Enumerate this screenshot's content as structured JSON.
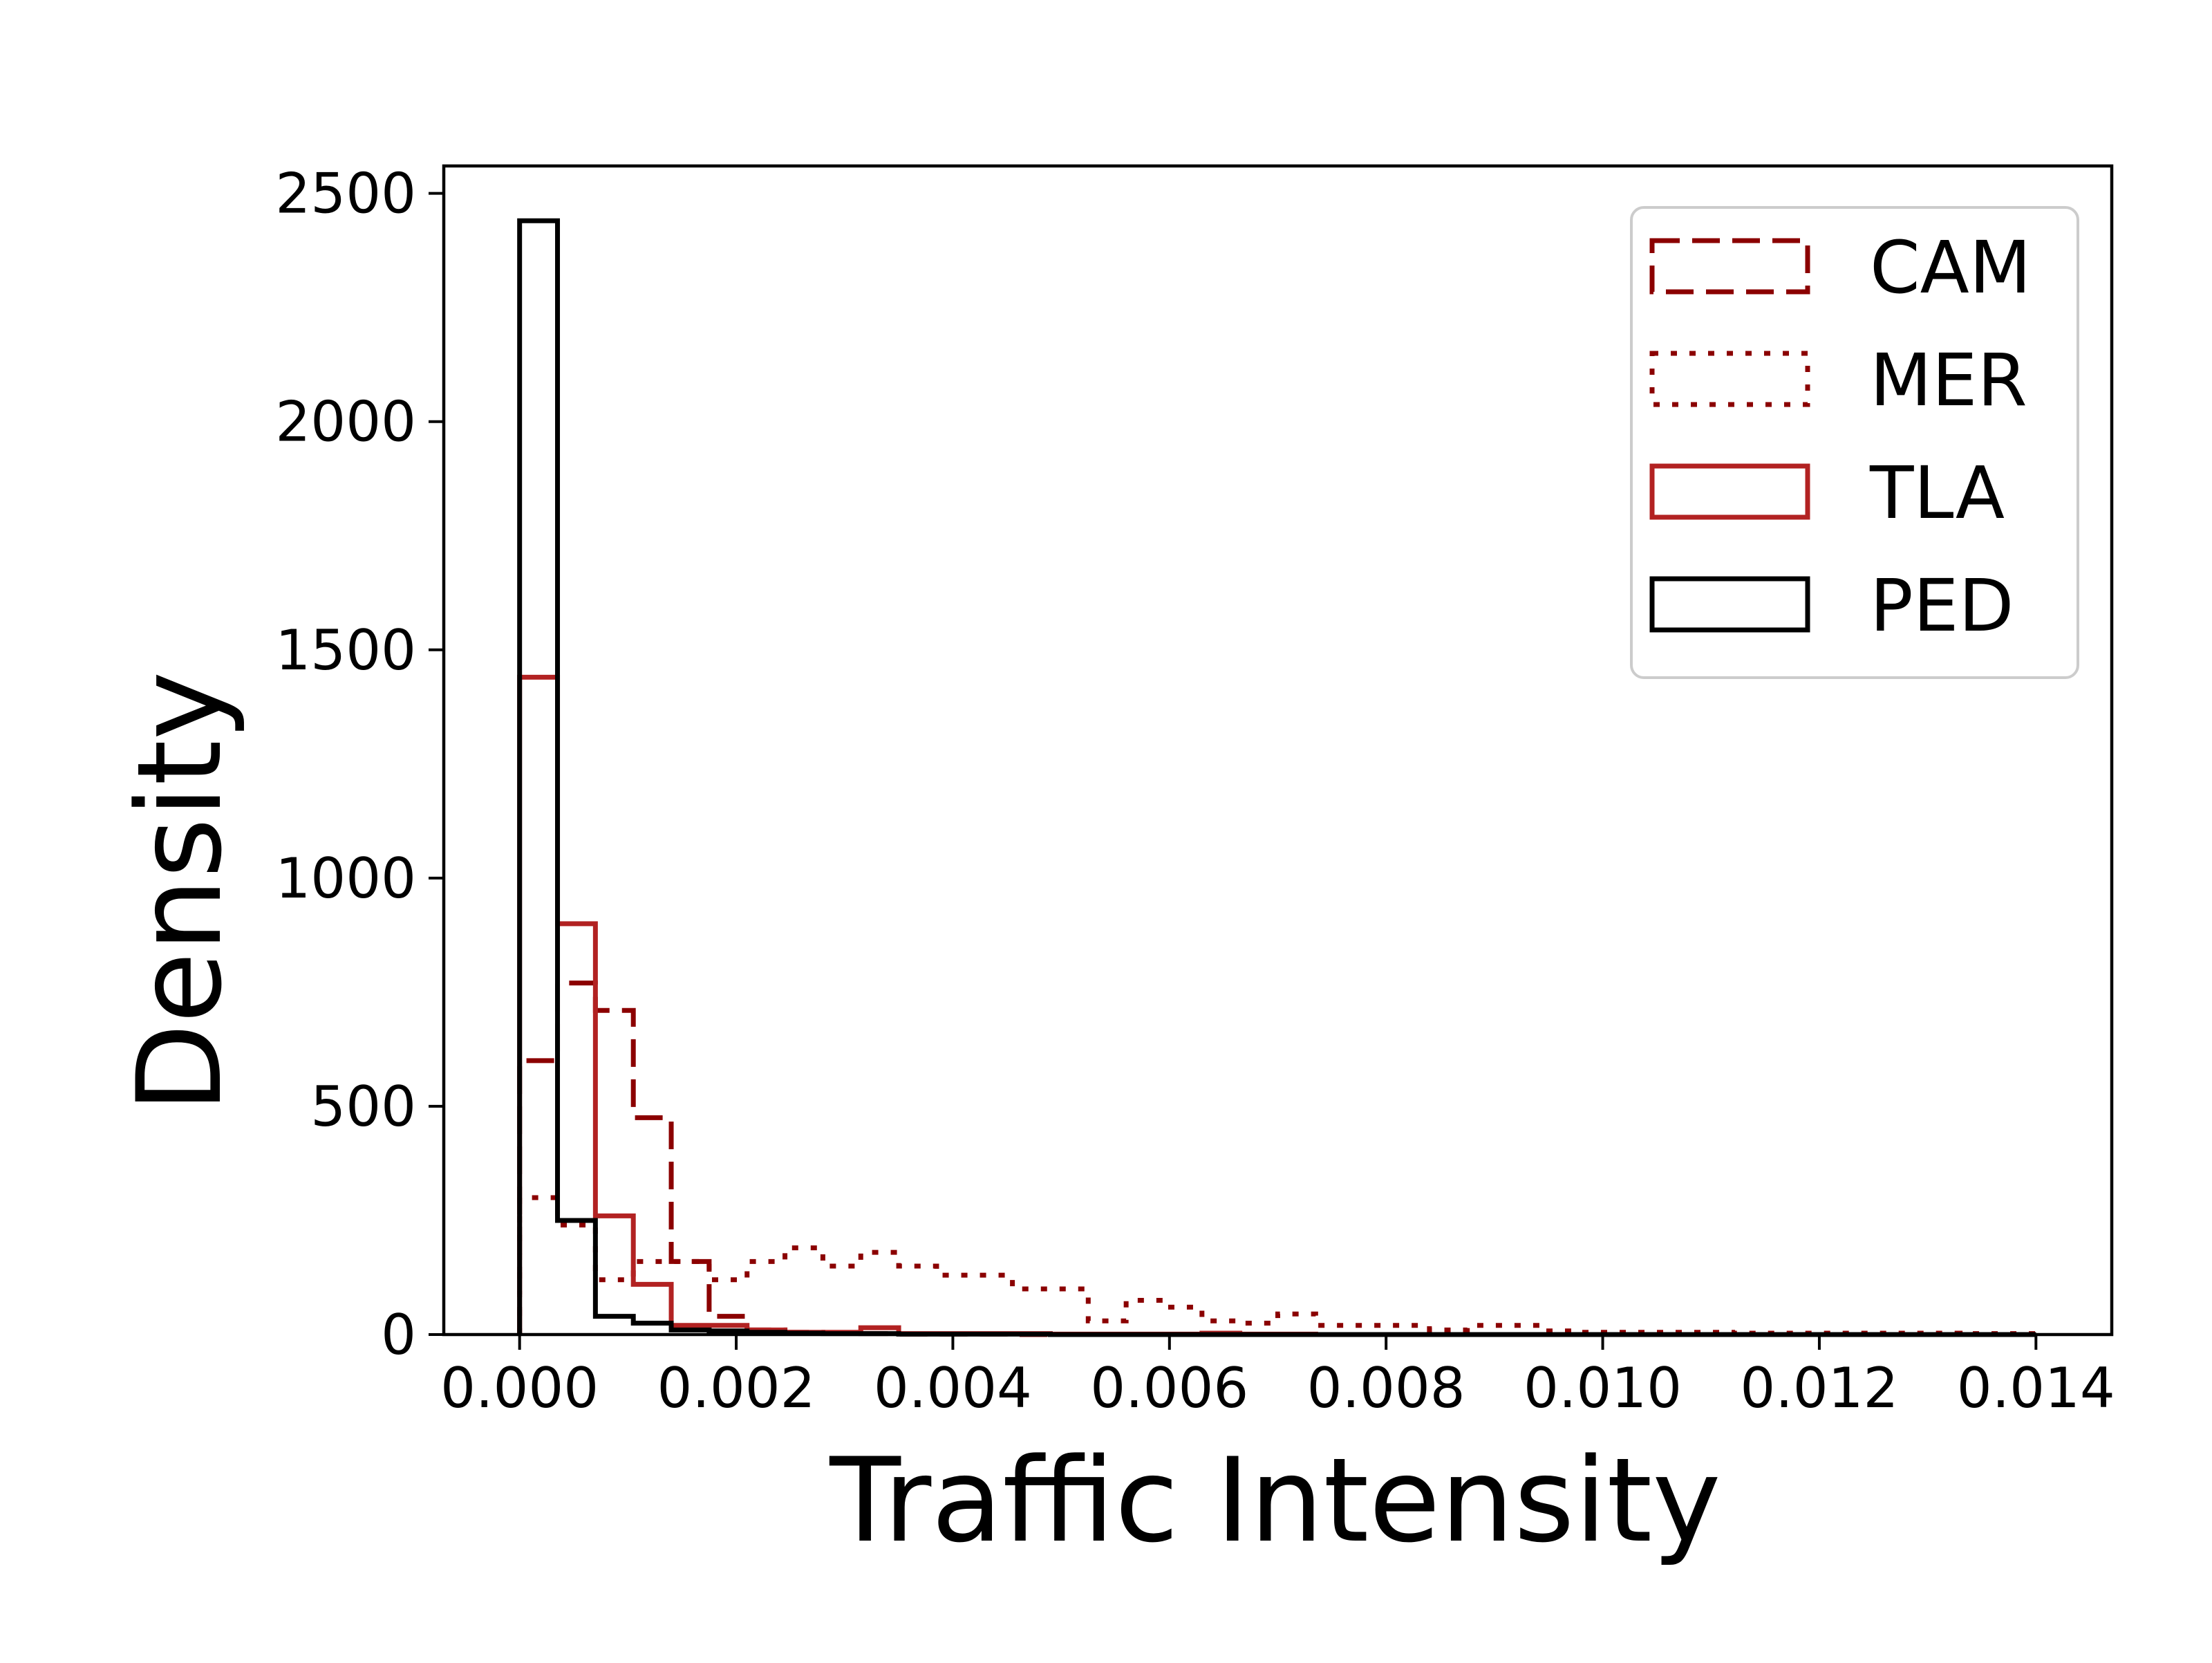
{
  "chart_data": {
    "type": "histogram",
    "title": "",
    "xlabel": "Traffic Intensity",
    "ylabel": "Density",
    "xlim": [
      -0.0007,
      0.0147
    ],
    "ylim": [
      0,
      2560
    ],
    "xticks": [
      0.0,
      0.002,
      0.004,
      0.006,
      0.008,
      0.01,
      0.012,
      0.014
    ],
    "xtick_labels": [
      "0.000",
      "0.002",
      "0.004",
      "0.006",
      "0.008",
      "0.010",
      "0.012",
      "0.014"
    ],
    "yticks": [
      0,
      500,
      1000,
      1500,
      2000,
      2500
    ],
    "ytick_labels": [
      "0",
      "500",
      "1000",
      "1500",
      "2000",
      "2500"
    ],
    "grid": false,
    "legend_position": "top-right",
    "series": [
      {
        "name": "CAM",
        "color": "#8b0000",
        "style": "dashed",
        "bin_start": 0.0,
        "bin_width": 0.00035,
        "values": [
          600,
          770,
          710,
          475,
          160,
          40,
          10,
          5,
          3,
          2,
          1,
          1,
          1,
          0,
          0,
          0,
          0,
          0,
          0,
          0,
          0,
          0,
          0,
          0,
          0,
          0,
          0,
          0,
          0,
          0,
          0,
          0,
          0,
          0,
          0,
          0,
          0,
          0,
          0,
          0
        ]
      },
      {
        "name": "MER",
        "color": "#8b0000",
        "style": "dotted",
        "bin_start": 0.0,
        "bin_width": 0.00035,
        "values": [
          300,
          240,
          120,
          160,
          160,
          120,
          160,
          190,
          150,
          180,
          150,
          130,
          130,
          100,
          100,
          30,
          75,
          60,
          30,
          25,
          45,
          20,
          20,
          20,
          10,
          20,
          20,
          8,
          5,
          5,
          5,
          5,
          3,
          3,
          3,
          3,
          3,
          3,
          2,
          2
        ]
      },
      {
        "name": "TLA",
        "color": "#b22222",
        "style": "solid",
        "bin_start": 0.0,
        "bin_width": 0.00035,
        "values": [
          1440,
          900,
          260,
          110,
          20,
          20,
          10,
          5,
          5,
          15,
          2,
          2,
          2,
          2,
          1,
          1,
          1,
          1,
          3,
          1,
          1,
          0,
          0,
          0,
          0,
          0,
          0,
          0,
          0,
          0,
          0,
          0,
          0,
          0,
          0,
          0,
          0,
          0,
          0,
          0
        ]
      },
      {
        "name": "PED",
        "color": "#000000",
        "style": "solid",
        "bin_start": 0.0,
        "bin_width": 0.00035,
        "values": [
          2440,
          250,
          40,
          25,
          10,
          8,
          5,
          3,
          2,
          2,
          1,
          1,
          1,
          1,
          0,
          0,
          0,
          0,
          0,
          0,
          0,
          0,
          0,
          0,
          0,
          0,
          0,
          0,
          0,
          0,
          0,
          0,
          0,
          0,
          0,
          0,
          0,
          0,
          0,
          0
        ]
      }
    ]
  }
}
